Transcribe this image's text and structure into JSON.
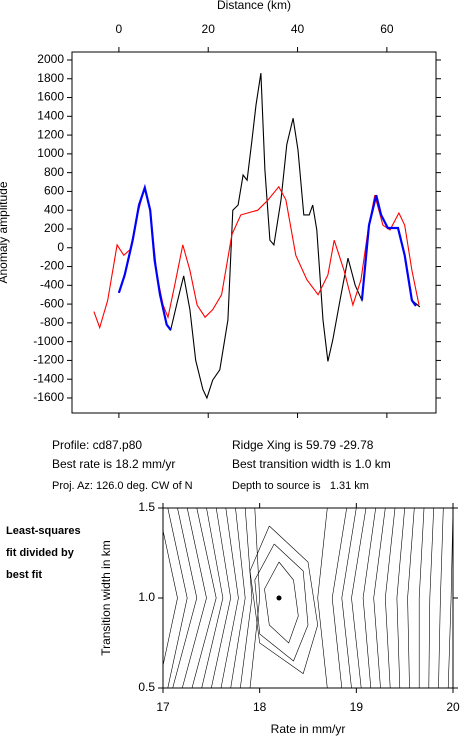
{
  "chart_data": [
    {
      "type": "line",
      "xlabel": "Distance (km)",
      "ylabel": "Anomaly amplitude",
      "xlim": [
        -10.5,
        71
      ],
      "xticks": [
        0,
        20,
        40,
        60
      ],
      "ylim": [
        -1760,
        2085
      ],
      "yticks": [
        -1600,
        -1400,
        -1200,
        -1000,
        -800,
        -600,
        -400,
        -200,
        0,
        200,
        400,
        600,
        800,
        1000,
        1200,
        1400,
        1600,
        1800,
        2000
      ],
      "series": [
        {
          "color": "#000000",
          "x": [
            0,
            1.3,
            3.1,
            4.5,
            5.8,
            7,
            8,
            9.2,
            10.7,
            11.6,
            13.2,
            14.5,
            15.9,
            17.2,
            18.8,
            19.7,
            21,
            22.6,
            24.4,
            25.5,
            26.7,
            27.8,
            28.7,
            29.8,
            30.7,
            31.8,
            32.7,
            33.8,
            34.7,
            36.3,
            37.6,
            39,
            40.1,
            41.4,
            42.6,
            43.4,
            44.3,
            45.7,
            46.8,
            47.9,
            49.5,
            51.3,
            52.9,
            54.4,
            56,
            57.6,
            58.7,
            60.2,
            62.5,
            64,
            65.6,
            67.4
          ],
          "values": [
            -480,
            -290,
            80,
            455,
            640,
            400,
            -130,
            -500,
            -820,
            -875,
            -550,
            -300,
            -660,
            -1200,
            -1510,
            -1600,
            -1410,
            -1300,
            -770,
            400,
            455,
            775,
            720,
            1150,
            1520,
            1860,
            830,
            80,
            30,
            510,
            1100,
            1380,
            1040,
            350,
            350,
            455,
            190,
            -770,
            -1210,
            -980,
            -560,
            -110,
            -400,
            -560,
            240,
            560,
            350,
            210,
            210,
            -80,
            -560,
            -630
          ]
        },
        {
          "color": "#ff0000",
          "x": [
            -5.6,
            -4.3,
            -2.5,
            -0.4,
            1.1,
            2.5,
            4.3,
            5.8,
            7,
            8.5,
            9.9,
            11,
            12.5,
            14.3,
            15.9,
            17.5,
            19.3,
            21,
            23,
            25.3,
            27.3,
            31.1,
            33.4,
            35.8,
            37.4,
            39.6,
            42.1,
            44.6,
            46.8,
            48.2,
            50.4,
            52.4,
            54.2,
            55.8,
            57.3,
            59.1,
            60.7,
            62.7,
            64,
            65.6,
            67.2
          ],
          "values": [
            -680,
            -850,
            -560,
            30,
            -80,
            -20,
            380,
            650,
            400,
            -290,
            -610,
            -740,
            -400,
            30,
            -240,
            -610,
            -740,
            -660,
            -500,
            140,
            350,
            400,
            510,
            650,
            510,
            -80,
            -340,
            -500,
            -290,
            80,
            -240,
            -610,
            -340,
            190,
            560,
            240,
            190,
            370,
            240,
            -240,
            -610
          ]
        },
        {
          "color": "#0000ff",
          "x": [
            0,
            1.3,
            3.1,
            4.5,
            5.8,
            7,
            8,
            9.2,
            10.7,
            11.6,
            null,
            54.4,
            56,
            57.6,
            58.7,
            60.2,
            62.5,
            64,
            65.6,
            66.5
          ],
          "values": [
            -480,
            -290,
            80,
            455,
            640,
            400,
            -130,
            -500,
            -820,
            -875,
            null,
            -560,
            240,
            560,
            350,
            210,
            210,
            -80,
            -560,
            -620
          ]
        }
      ]
    },
    {
      "type": "contour",
      "xlabel": "Rate in mm/yr",
      "ylabel": "Transition width in km",
      "xlim": [
        17,
        20
      ],
      "xticks": [
        17,
        18,
        19,
        20
      ],
      "ylim": [
        0.5,
        1.5
      ],
      "yticks": [
        {
          "value": 0.5,
          "label": "0.5"
        },
        {
          "value": 1,
          "label": "1.0"
        },
        {
          "value": 1.5,
          "label": "1.5"
        }
      ],
      "best": {
        "x": 18.2,
        "y": 1
      },
      "contours": [
        {
          "x": [
            16.95,
            17.15,
            16.95
          ],
          "y": [
            1.5,
            1,
            0.5
          ]
        },
        {
          "x": [
            17.05,
            17.25,
            17.05
          ],
          "y": [
            1.5,
            1,
            0.5
          ]
        },
        {
          "x": [
            17.15,
            17.35,
            17.1
          ],
          "y": [
            1.5,
            1,
            0.5
          ]
        },
        {
          "x": [
            17.25,
            17.45,
            17.2
          ],
          "y": [
            1.5,
            1,
            0.5
          ]
        },
        {
          "x": [
            17.35,
            17.55,
            17.3
          ],
          "y": [
            1.5,
            1,
            0.5
          ]
        },
        {
          "x": [
            17.45,
            17.62,
            17.4
          ],
          "y": [
            1.5,
            1,
            0.5
          ]
        },
        {
          "x": [
            17.55,
            17.7,
            17.5
          ],
          "y": [
            1.5,
            1,
            0.5
          ]
        },
        {
          "x": [
            17.65,
            17.78,
            17.6
          ],
          "y": [
            1.5,
            1,
            0.5
          ]
        },
        {
          "x": [
            17.75,
            17.85,
            17.7
          ],
          "y": [
            1.5,
            1,
            0.5
          ]
        },
        {
          "x": [
            17.85,
            17.92,
            17.8
          ],
          "y": [
            1.5,
            1,
            0.5
          ]
        },
        {
          "x": [
            17.95,
            18,
            17.9
          ],
          "y": [
            1.5,
            1,
            0.5
          ]
        },
        {
          "x": [
            18.7,
            18.6,
            18.7
          ],
          "y": [
            1.5,
            1,
            0.5
          ]
        },
        {
          "x": [
            18.9,
            18.75,
            18.85
          ],
          "y": [
            1.5,
            1,
            0.5
          ]
        },
        {
          "x": [
            19,
            18.85,
            18.95
          ],
          "y": [
            1.5,
            1,
            0.5
          ]
        },
        {
          "x": [
            19.1,
            18.95,
            19.05
          ],
          "y": [
            1.5,
            1,
            0.5
          ]
        },
        {
          "x": [
            19.2,
            19.07,
            19.15
          ],
          "y": [
            1.5,
            1,
            0.5
          ]
        },
        {
          "x": [
            19.3,
            19.18,
            19.25
          ],
          "y": [
            1.5,
            1,
            0.5
          ]
        },
        {
          "x": [
            19.4,
            19.3,
            19.35
          ],
          "y": [
            1.5,
            1,
            0.5
          ]
        },
        {
          "x": [
            19.5,
            19.42,
            19.45
          ],
          "y": [
            1.5,
            1,
            0.5
          ]
        },
        {
          "x": [
            19.6,
            19.53,
            19.55
          ],
          "y": [
            1.5,
            1,
            0.5
          ]
        },
        {
          "x": [
            19.7,
            19.65,
            19.65
          ],
          "y": [
            1.5,
            1,
            0.5
          ]
        },
        {
          "x": [
            19.8,
            19.76,
            19.75
          ],
          "y": [
            1.5,
            1,
            0.5
          ]
        },
        {
          "x": [
            19.9,
            19.87,
            19.85
          ],
          "y": [
            1.5,
            1,
            0.5
          ]
        },
        {
          "x": [
            20,
            19.98,
            19.95
          ],
          "y": [
            1.5,
            1,
            0.5
          ]
        },
        {
          "x": [
            18.2,
            18.35,
            18.4,
            18.3,
            18.1,
            18.05,
            18.2
          ],
          "y": [
            1.2,
            1.1,
            0.9,
            0.75,
            0.85,
            1.05,
            1.2
          ]
        },
        {
          "x": [
            18.15,
            18.45,
            18.5,
            18.35,
            18,
            17.95,
            18.15
          ],
          "y": [
            1.3,
            1.15,
            0.85,
            0.65,
            0.8,
            1.1,
            1.3
          ]
        },
        {
          "x": [
            18.1,
            18.5,
            18.6,
            18.45,
            18,
            17.9,
            18.1
          ],
          "y": [
            1.4,
            1.2,
            0.85,
            0.58,
            0.75,
            1.15,
            1.4
          ]
        }
      ]
    }
  ],
  "info": {
    "profile": "Profile: cd87.p80",
    "ridge": "Ridge Xing is 59.79 -29.78",
    "rate": "Best rate is 18.2 mm/yr",
    "width": "Best transition width is 1.0 km",
    "azimuth": "Proj. Az: 126.0 deg. CW of N",
    "depth": "Depth to source is   1.31 km",
    "side": [
      "Least-squares",
      "fit divided by",
      "best fit"
    ]
  }
}
